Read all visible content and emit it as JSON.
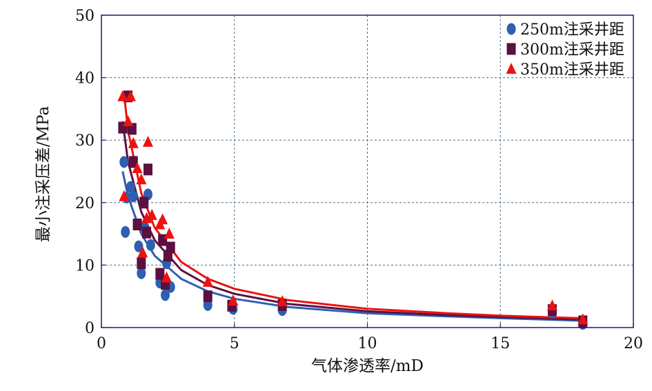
{
  "chart_data": {
    "type": "scatter",
    "xlabel": "气体渗透率/mD",
    "ylabel": "最小注采压差/MPa",
    "xlim": [
      0,
      20
    ],
    "ylim": [
      0,
      50
    ],
    "x_ticks": [
      "0",
      "5",
      "10",
      "15",
      "20"
    ],
    "y_ticks": [
      "0",
      "10",
      "20",
      "30",
      "40",
      "50"
    ],
    "grid": true,
    "legend_position": "top-right",
    "series": [
      {
        "name": "250m注采井距",
        "marker": "circle",
        "color": "#2e5fb0",
        "points": [
          [
            0.85,
            26.5
          ],
          [
            0.9,
            15.3
          ],
          [
            0.95,
            20.8
          ],
          [
            1.1,
            22.5
          ],
          [
            1.2,
            21.0
          ],
          [
            1.4,
            13.0
          ],
          [
            1.5,
            8.7
          ],
          [
            1.6,
            16.0
          ],
          [
            1.75,
            21.3
          ],
          [
            1.85,
            13.2
          ],
          [
            2.2,
            7.2
          ],
          [
            2.4,
            5.2
          ],
          [
            2.45,
            10.3
          ],
          [
            2.6,
            6.5
          ],
          [
            4.0,
            3.6
          ],
          [
            4.95,
            3.0
          ],
          [
            6.8,
            2.8
          ],
          [
            16.95,
            2.4
          ],
          [
            18.1,
            0.6
          ]
        ],
        "fit_curve": [
          [
            0.8,
            25.0
          ],
          [
            1.0,
            21.0
          ],
          [
            1.5,
            15.0
          ],
          [
            2.0,
            11.5
          ],
          [
            3.0,
            7.8
          ],
          [
            4.0,
            5.8
          ],
          [
            5.0,
            4.6
          ],
          [
            7.0,
            3.3
          ],
          [
            10.0,
            2.3
          ],
          [
            13.0,
            1.8
          ],
          [
            15.0,
            1.5
          ],
          [
            18.0,
            1.1
          ]
        ]
      },
      {
        "name": "300m注采井距",
        "marker": "square",
        "color": "#5b1040",
        "points": [
          [
            0.8,
            32.0
          ],
          [
            1.0,
            37.0
          ],
          [
            1.15,
            31.8
          ],
          [
            1.2,
            26.5
          ],
          [
            1.35,
            16.5
          ],
          [
            1.5,
            10.3
          ],
          [
            1.6,
            20.0
          ],
          [
            1.7,
            15.2
          ],
          [
            1.75,
            25.3
          ],
          [
            2.2,
            8.6
          ],
          [
            2.3,
            14.0
          ],
          [
            2.4,
            7.0
          ],
          [
            2.5,
            11.5
          ],
          [
            2.6,
            12.8
          ],
          [
            4.0,
            5.0
          ],
          [
            4.9,
            3.5
          ],
          [
            6.8,
            3.6
          ],
          [
            16.95,
            2.8
          ],
          [
            18.1,
            1.0
          ]
        ],
        "fit_curve": [
          [
            0.8,
            33.0
          ],
          [
            1.0,
            26.5
          ],
          [
            1.5,
            18.5
          ],
          [
            2.0,
            14.0
          ],
          [
            3.0,
            9.2
          ],
          [
            4.0,
            6.8
          ],
          [
            5.0,
            5.4
          ],
          [
            7.0,
            3.8
          ],
          [
            10.0,
            2.6
          ],
          [
            13.0,
            2.0
          ],
          [
            15.0,
            1.7
          ],
          [
            18.0,
            1.3
          ]
        ]
      },
      {
        "name": "350m注采井距",
        "marker": "triangle",
        "color": "#ee1111",
        "points": [
          [
            0.8,
            37.0
          ],
          [
            0.85,
            21.0
          ],
          [
            1.0,
            33.0
          ],
          [
            1.1,
            37.0
          ],
          [
            1.2,
            29.5
          ],
          [
            1.35,
            25.5
          ],
          [
            1.5,
            23.7
          ],
          [
            1.55,
            12.0
          ],
          [
            1.7,
            17.5
          ],
          [
            1.75,
            29.7
          ],
          [
            1.9,
            18.0
          ],
          [
            2.2,
            16.5
          ],
          [
            2.3,
            17.3
          ],
          [
            2.45,
            8.0
          ],
          [
            2.55,
            15.0
          ],
          [
            4.0,
            7.3
          ],
          [
            4.95,
            4.3
          ],
          [
            6.8,
            4.2
          ],
          [
            16.95,
            3.5
          ],
          [
            18.1,
            1.3
          ]
        ],
        "fit_curve": [
          [
            0.85,
            37.5
          ],
          [
            1.0,
            31.5
          ],
          [
            1.5,
            21.5
          ],
          [
            2.0,
            16.0
          ],
          [
            3.0,
            10.5
          ],
          [
            4.0,
            7.8
          ],
          [
            5.0,
            6.2
          ],
          [
            7.0,
            4.4
          ],
          [
            10.0,
            3.0
          ],
          [
            13.0,
            2.3
          ],
          [
            15.0,
            1.9
          ],
          [
            18.0,
            1.5
          ]
        ]
      }
    ]
  }
}
